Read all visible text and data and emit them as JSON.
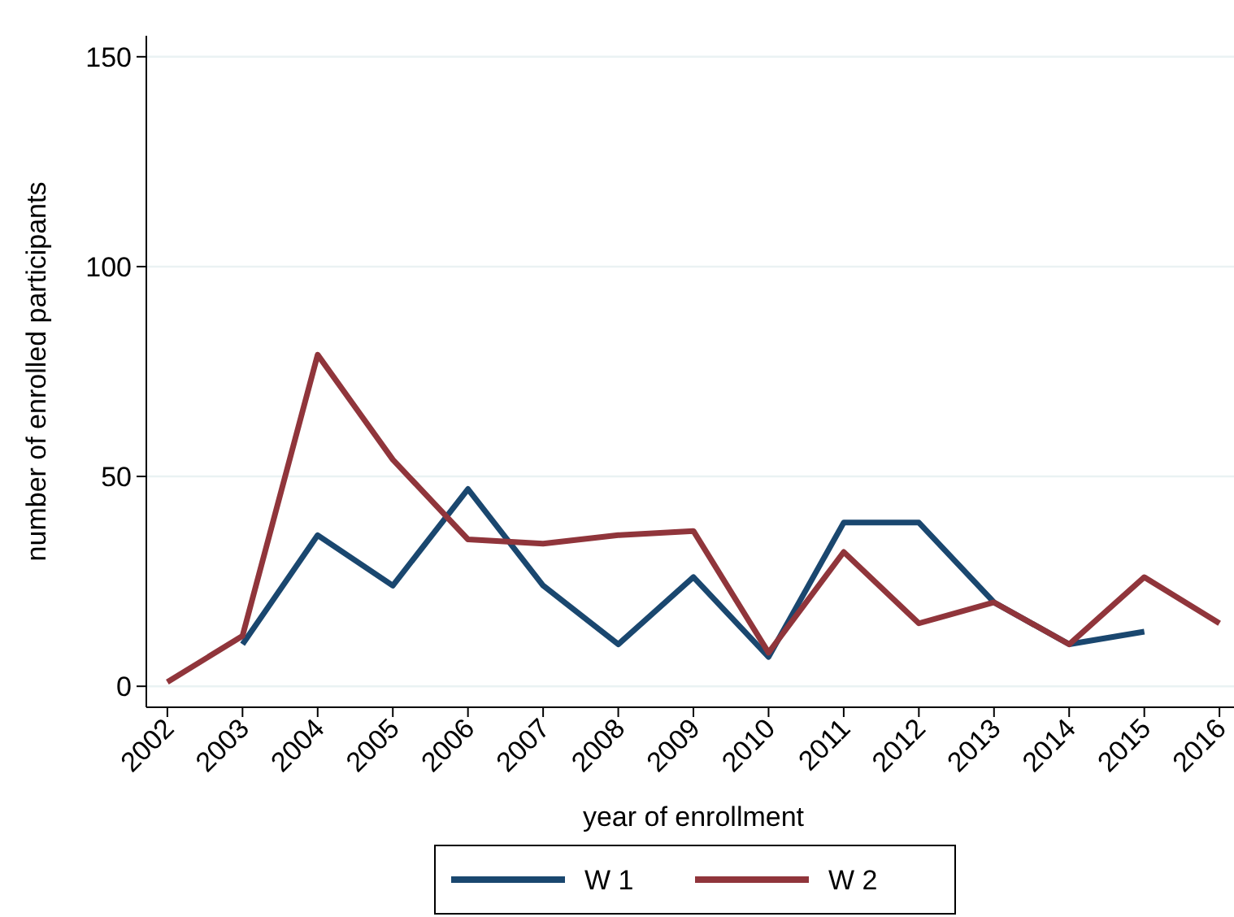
{
  "chart_data": {
    "type": "line",
    "xlabel": "year of enrollment",
    "ylabel": "number of enrolled participants",
    "categories": [
      "2002",
      "2003",
      "2004",
      "2005",
      "2006",
      "2007",
      "2008",
      "2009",
      "2010",
      "2011",
      "2012",
      "2013",
      "2014",
      "2015",
      "2016"
    ],
    "series": [
      {
        "name": "W 1",
        "color": "#1a476f",
        "values": [
          null,
          10,
          36,
          24,
          47,
          24,
          10,
          26,
          7,
          39,
          39,
          20,
          10,
          13,
          null
        ]
      },
      {
        "name": "W 2",
        "color": "#90353b",
        "values": [
          1,
          12,
          79,
          54,
          35,
          34,
          36,
          37,
          8,
          32,
          15,
          20,
          10,
          26,
          15
        ]
      }
    ],
    "ylim": [
      -5,
      155
    ],
    "yticks": [
      0,
      50,
      100,
      150
    ],
    "grid": "y",
    "legend": "bottom",
    "marker": "none",
    "line_style": "solid"
  }
}
